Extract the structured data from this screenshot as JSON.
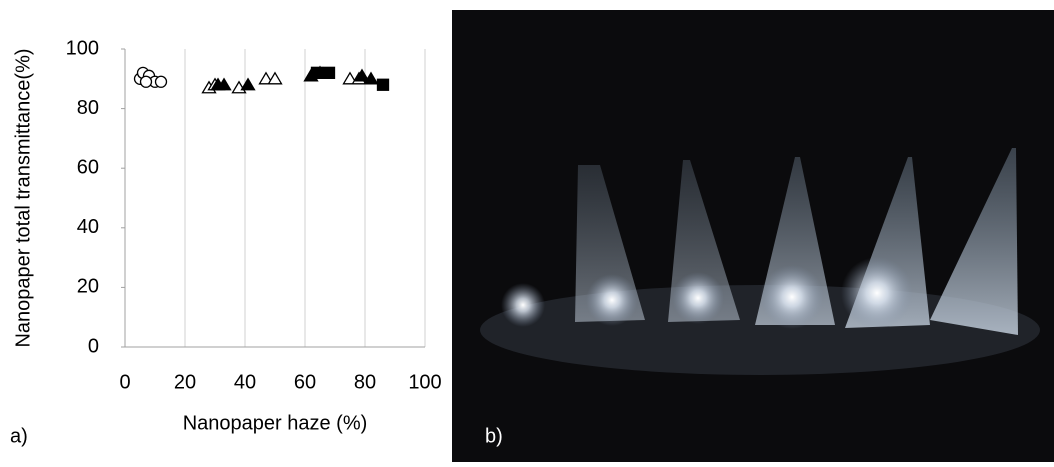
{
  "chart_data": {
    "type": "scatter",
    "xlabel": "Nanopaper haze (%)",
    "ylabel": "Nanopaper total transmittance(%)",
    "xlim": [
      0,
      100
    ],
    "xticks": [
      0,
      20,
      40,
      60,
      80,
      100
    ],
    "ylim": [
      0,
      100
    ],
    "yticks": [
      0,
      20,
      40,
      60,
      80,
      100
    ],
    "grid": "x",
    "series": [
      {
        "marker": "circle",
        "filled": false,
        "color": "#000000",
        "x": [
          5,
          6,
          8,
          10,
          12,
          7
        ],
        "values": [
          90,
          92,
          91,
          89,
          89,
          89
        ]
      },
      {
        "marker": "triangle",
        "filled": false,
        "color": "#000000",
        "x": [
          28,
          30,
          38,
          47,
          50,
          75,
          78
        ],
        "values": [
          87,
          88,
          87,
          90,
          90,
          90,
          90
        ]
      },
      {
        "marker": "triangle",
        "filled": true,
        "color": "#000000",
        "x": [
          31,
          33,
          41,
          62,
          65,
          79,
          82
        ],
        "values": [
          88,
          88,
          88,
          91,
          92,
          91,
          90
        ]
      },
      {
        "marker": "square",
        "filled": true,
        "color": "#000000",
        "x": [
          64,
          68,
          86
        ],
        "values": [
          92,
          92,
          88
        ]
      }
    ]
  },
  "panels": [
    "a)",
    "b)"
  ]
}
